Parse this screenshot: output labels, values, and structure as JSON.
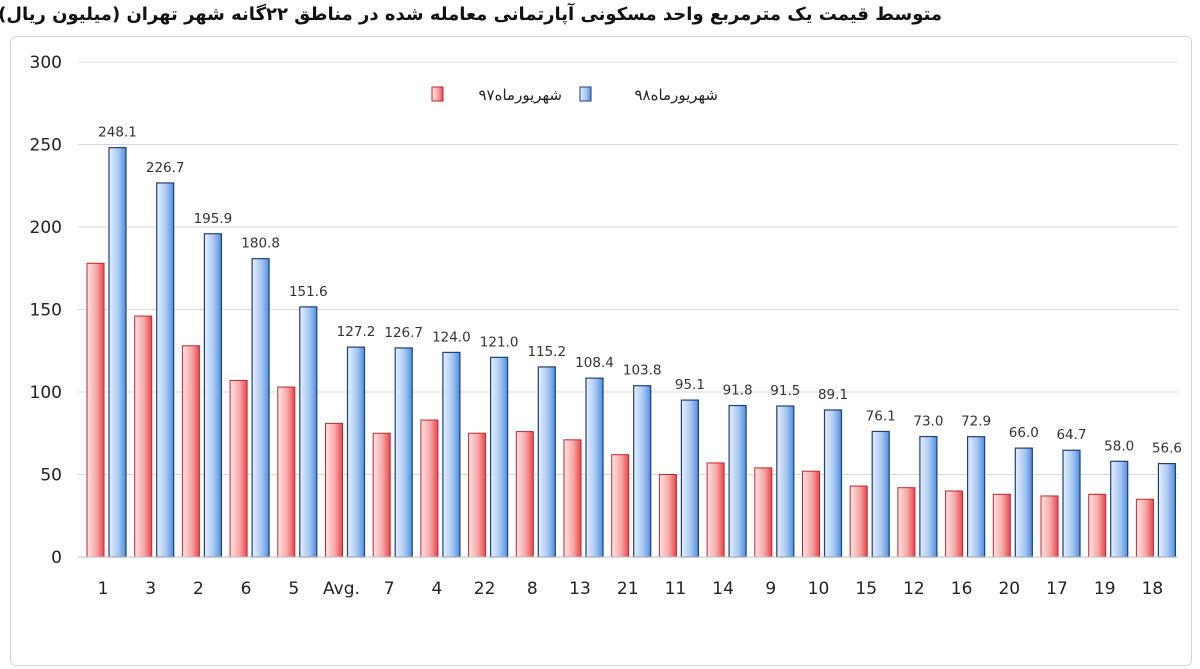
{
  "chart_data": {
    "type": "bar",
    "title": "متوسط قیمت یک مترمربع واحد مسکونی آپارتمانی معامله شده در مناطق ۲۲گانه شهر تهران (میلیون ریال)",
    "categories": [
      "1",
      "3",
      "2",
      "6",
      "5",
      "Avg.",
      "7",
      "4",
      "22",
      "8",
      "13",
      "21",
      "11",
      "14",
      "9",
      "10",
      "15",
      "12",
      "16",
      "20",
      "17",
      "19",
      "18"
    ],
    "series": [
      {
        "name": "شهریورماه۹۷",
        "color": "#e8474b",
        "values": [
          178,
          146,
          128,
          107,
          103,
          81,
          75,
          83,
          75,
          76,
          71,
          62,
          50,
          57,
          54,
          52,
          43,
          42,
          40,
          38,
          37,
          38,
          35
        ]
      },
      {
        "name": "شهریورماه۹۸",
        "color": "#4d8fe0",
        "values": [
          248.1,
          226.7,
          195.9,
          180.8,
          151.6,
          127.2,
          126.7,
          124.0,
          121.0,
          115.2,
          108.4,
          103.8,
          95.1,
          91.8,
          91.5,
          89.1,
          76.1,
          73.0,
          72.9,
          66.0,
          64.7,
          58.0,
          56.6
        ],
        "labels": [
          "248.1",
          "226.7",
          "195.9",
          "180.8",
          "151.6",
          "127.2",
          "126.7",
          "124.0",
          "121.0",
          "115.2",
          "108.4",
          "103.8",
          "95.1",
          "91.8",
          "91.5",
          "89.1",
          "76.1",
          "73.0",
          "72.9",
          "66.0",
          "64.7",
          "58.0",
          "56.6"
        ]
      }
    ],
    "ylim": [
      0,
      300
    ],
    "yticks": [
      "0",
      "50",
      "100",
      "150",
      "200",
      "250",
      "300"
    ],
    "grid": true,
    "legend": "top-center"
  }
}
